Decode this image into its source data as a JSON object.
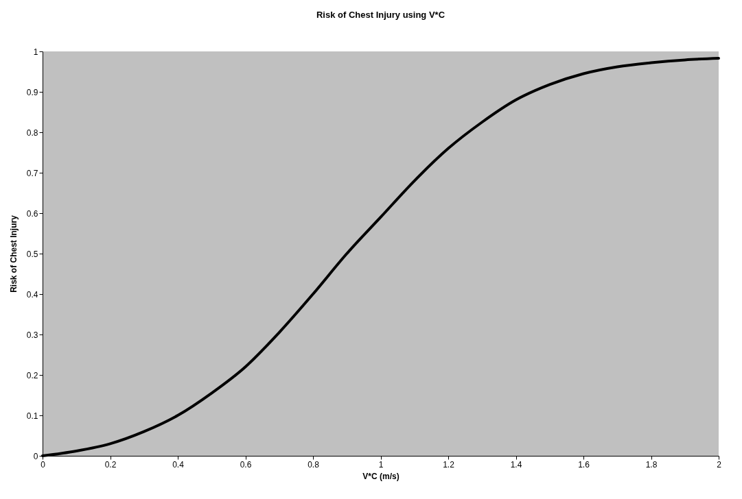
{
  "chart_data": {
    "type": "line",
    "title": "Risk of Chest Injury using V*C",
    "xlabel": "V*C (m/s)",
    "ylabel": "Risk of Chest Injury",
    "x": [
      0,
      0.1,
      0.2,
      0.3,
      0.4,
      0.5,
      0.6,
      0.7,
      0.8,
      0.9,
      1.0,
      1.1,
      1.2,
      1.3,
      1.4,
      1.5,
      1.6,
      1.7,
      1.8,
      1.9,
      2.0
    ],
    "series": [
      {
        "color": "#000000",
        "values": [
          0,
          0.012,
          0.03,
          0.06,
          0.1,
          0.155,
          0.22,
          0.305,
          0.4,
          0.5,
          0.59,
          0.68,
          0.76,
          0.825,
          0.88,
          0.918,
          0.945,
          0.962,
          0.972,
          0.979,
          0.983
        ]
      }
    ],
    "xlim": [
      0,
      2
    ],
    "xticks": [
      0,
      0.2,
      0.4,
      0.6,
      0.8,
      1,
      1.2,
      1.4,
      1.6,
      1.8,
      2
    ],
    "ylim": [
      0,
      1
    ],
    "yticks": [
      0,
      0.1,
      0.2,
      0.3,
      0.4,
      0.5,
      0.6,
      0.7,
      0.8,
      0.9,
      1
    ],
    "grid": false,
    "marker": "none",
    "line_style": "solid"
  }
}
